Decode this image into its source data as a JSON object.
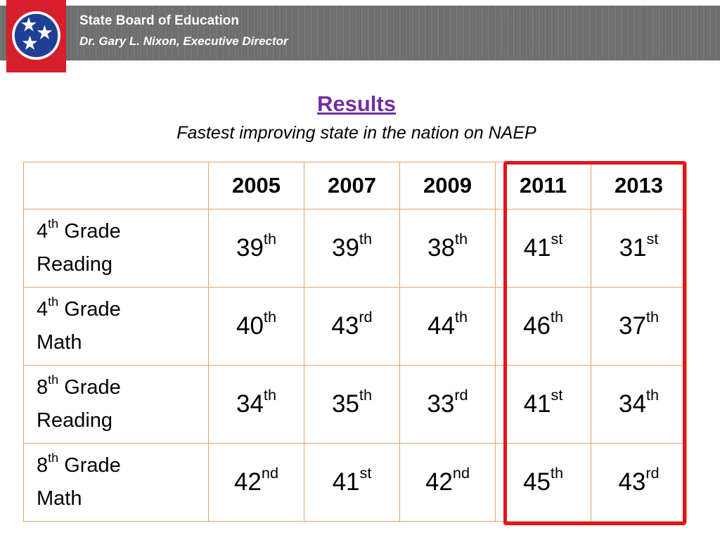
{
  "header": {
    "org_name": "State Board of Education",
    "director": "Dr. Gary L. Nixon, Executive Director",
    "logo_icon": "tennessee-tristar-icon"
  },
  "slide": {
    "title": "Results",
    "subtitle": "Fastest improving state in the nation on NAEP"
  },
  "table": {
    "years": [
      "2005",
      "2007",
      "2009",
      "2011",
      "2013"
    ],
    "rows": [
      {
        "grade": "4",
        "grade_suffix": "th",
        "label_rest": " Grade",
        "subject": "Reading",
        "ranks": [
          {
            "n": "39",
            "s": "th"
          },
          {
            "n": "39",
            "s": "th"
          },
          {
            "n": "38",
            "s": "th"
          },
          {
            "n": "41",
            "s": "st"
          },
          {
            "n": "31",
            "s": "st"
          }
        ]
      },
      {
        "grade": "4",
        "grade_suffix": "th",
        "label_rest": " Grade",
        "subject": "Math",
        "ranks": [
          {
            "n": "40",
            "s": "th"
          },
          {
            "n": "43",
            "s": "rd"
          },
          {
            "n": "44",
            "s": "th"
          },
          {
            "n": "46",
            "s": "th"
          },
          {
            "n": "37",
            "s": "th"
          }
        ]
      },
      {
        "grade": "8",
        "grade_suffix": "th",
        "label_rest": " Grade",
        "subject": "Reading",
        "ranks": [
          {
            "n": "34",
            "s": "th"
          },
          {
            "n": "35",
            "s": "th"
          },
          {
            "n": "33",
            "s": "rd"
          },
          {
            "n": "41",
            "s": "st"
          },
          {
            "n": "34",
            "s": "th"
          }
        ]
      },
      {
        "grade": "8",
        "grade_suffix": "th",
        "label_rest": " Grade",
        "subject": "Math",
        "ranks": [
          {
            "n": "42",
            "s": "nd"
          },
          {
            "n": "41",
            "s": "st"
          },
          {
            "n": "42",
            "s": "nd"
          },
          {
            "n": "45",
            "s": "th"
          },
          {
            "n": "43",
            "s": "rd"
          }
        ]
      }
    ]
  },
  "colors": {
    "title": "#7030a0",
    "highlight": "#e8121a",
    "table_border": "#e8a26a",
    "logo_red": "#d71e2b",
    "logo_blue": "#1f3f95"
  }
}
